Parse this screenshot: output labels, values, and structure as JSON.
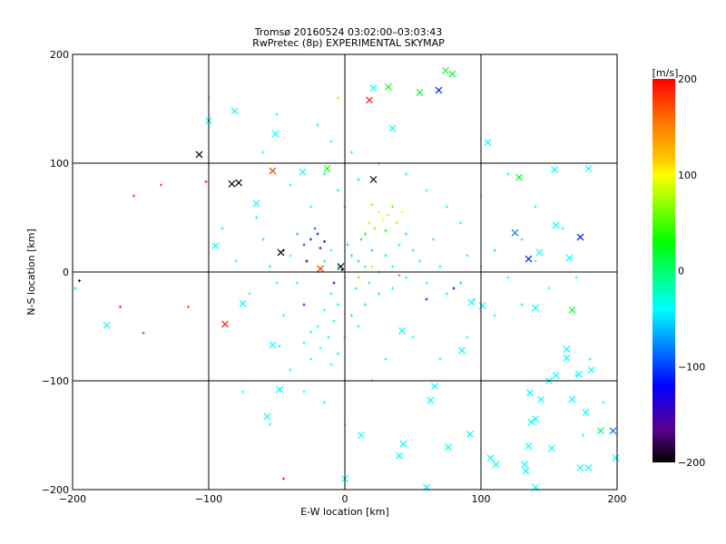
{
  "chart_data": {
    "type": "scatter",
    "title_line1": "Tromsø 20160524 03:02:00–03:03:43",
    "title_line2": "RwPretec (8p) EXPERIMENTAL SKYMAP",
    "xlabel": "E-W location [km]",
    "ylabel": "N-S location [km]",
    "xlim": [
      -200,
      200
    ],
    "ylim": [
      -200,
      200
    ],
    "xticks": [
      -200,
      -100,
      0,
      100,
      200
    ],
    "yticks": [
      -200,
      -100,
      0,
      100,
      200
    ],
    "xtick_labels": [
      "−200",
      "−100",
      "0",
      "100",
      "200"
    ],
    "ytick_labels": [
      "−200",
      "−100",
      "0",
      "100",
      "200"
    ],
    "grid": true,
    "colorbar": {
      "label": "[m/s]",
      "range": [
        -200,
        200
      ],
      "ticks": [
        200,
        100,
        0,
        -100,
        -200
      ],
      "tick_labels": [
        "200",
        "100",
        "0",
        "−100",
        "−200"
      ],
      "stops": [
        {
          "v": 200,
          "color": "#ff0000"
        },
        {
          "v": 160,
          "color": "#ff6a00"
        },
        {
          "v": 115,
          "color": "#ffcc00"
        },
        {
          "v": 100,
          "color": "#ffff00"
        },
        {
          "v": 30,
          "color": "#00ff00"
        },
        {
          "v": -40,
          "color": "#00ffff"
        },
        {
          "v": -120,
          "color": "#0000ff"
        },
        {
          "v": -165,
          "color": "#5a0090"
        },
        {
          "v": -200,
          "color": "#000000"
        }
      ]
    },
    "series": [
      {
        "name": "small-markers",
        "marker": "plus",
        "points": [
          [
            10,
            10,
            0
          ],
          [
            15,
            5,
            -20
          ],
          [
            5,
            15,
            10
          ],
          [
            20,
            20,
            20
          ],
          [
            -5,
            5,
            -10
          ],
          [
            0,
            -5,
            -20
          ],
          [
            25,
            0,
            10
          ],
          [
            30,
            15,
            0
          ],
          [
            12,
            30,
            10
          ],
          [
            -10,
            20,
            -30
          ],
          [
            -15,
            10,
            -20
          ],
          [
            8,
            -15,
            -10
          ],
          [
            18,
            -10,
            -20
          ],
          [
            35,
            5,
            -30
          ],
          [
            40,
            25,
            -10
          ],
          [
            -20,
            0,
            -30
          ],
          [
            2,
            25,
            20
          ],
          [
            22,
            40,
            60
          ],
          [
            28,
            48,
            100
          ],
          [
            32,
            52,
            110
          ],
          [
            25,
            55,
            90
          ],
          [
            18,
            45,
            80
          ],
          [
            38,
            45,
            70
          ],
          [
            35,
            60,
            50
          ],
          [
            20,
            62,
            120
          ],
          [
            42,
            55,
            90
          ],
          [
            30,
            38,
            40
          ],
          [
            15,
            35,
            30
          ],
          [
            45,
            35,
            20
          ],
          [
            50,
            20,
            -10
          ],
          [
            -25,
            30,
            -110
          ],
          [
            -20,
            35,
            -120
          ],
          [
            -15,
            28,
            -130
          ],
          [
            -30,
            25,
            -100
          ],
          [
            -18,
            22,
            -150
          ],
          [
            -22,
            40,
            -90
          ],
          [
            -35,
            35,
            -60
          ],
          [
            -40,
            15,
            -40
          ],
          [
            -28,
            10,
            -200
          ],
          [
            -45,
            20,
            -170
          ],
          [
            -10,
            -20,
            -20
          ],
          [
            -5,
            -30,
            -30
          ],
          [
            -15,
            -35,
            -40
          ],
          [
            -8,
            -45,
            -30
          ],
          [
            -20,
            -50,
            -40
          ],
          [
            -12,
            -60,
            -35
          ],
          [
            -18,
            -70,
            -40
          ],
          [
            -25,
            -55,
            -30
          ],
          [
            0,
            -60,
            -20
          ],
          [
            -5,
            -75,
            -40
          ],
          [
            -25,
            -80,
            -40
          ],
          [
            -30,
            -65,
            -35
          ],
          [
            -10,
            -85,
            -30
          ],
          [
            5,
            -40,
            -10
          ],
          [
            10,
            -50,
            -20
          ],
          [
            15,
            -30,
            0
          ],
          [
            25,
            -20,
            -10
          ],
          [
            35,
            -15,
            -30
          ],
          [
            45,
            -5,
            -40
          ],
          [
            55,
            10,
            -30
          ],
          [
            60,
            -10,
            -40
          ],
          [
            70,
            5,
            -20
          ],
          [
            65,
            30,
            -30
          ],
          [
            75,
            -20,
            -40
          ],
          [
            85,
            -10,
            -50
          ],
          [
            90,
            15,
            -30
          ],
          [
            95,
            -25,
            -40
          ],
          [
            100,
            5,
            -40
          ],
          [
            110,
            20,
            -50
          ],
          [
            120,
            -5,
            -40
          ],
          [
            130,
            30,
            -30
          ],
          [
            140,
            10,
            -40
          ],
          [
            150,
            -15,
            -40
          ],
          [
            160,
            40,
            -30
          ],
          [
            170,
            -5,
            -40
          ],
          [
            -50,
            -10,
            -30
          ],
          [
            -55,
            5,
            -20
          ],
          [
            -60,
            30,
            -10
          ],
          [
            -65,
            50,
            -30
          ],
          [
            -70,
            -20,
            -40
          ],
          [
            -80,
            10,
            -30
          ],
          [
            -90,
            40,
            -20
          ],
          [
            -45,
            -40,
            -30
          ],
          [
            -40,
            -90,
            -30
          ],
          [
            -30,
            -110,
            -40
          ],
          [
            -15,
            -120,
            -40
          ],
          [
            0,
            -140,
            -30
          ],
          [
            20,
            -100,
            -30
          ],
          [
            30,
            -80,
            -20
          ],
          [
            50,
            -60,
            -40
          ],
          [
            70,
            -80,
            -30
          ],
          [
            90,
            -60,
            -40
          ],
          [
            110,
            -40,
            -30
          ],
          [
            130,
            -30,
            -40
          ],
          [
            0,
            60,
            -10
          ],
          [
            -5,
            75,
            0
          ],
          [
            10,
            85,
            10
          ],
          [
            -15,
            90,
            -20
          ],
          [
            -25,
            60,
            -30
          ],
          [
            5,
            110,
            -30
          ],
          [
            -10,
            120,
            -40
          ],
          [
            -20,
            135,
            -30
          ],
          [
            25,
            100,
            -20
          ],
          [
            45,
            90,
            -30
          ],
          [
            60,
            75,
            -40
          ],
          [
            75,
            60,
            -30
          ],
          [
            85,
            45,
            -40
          ],
          [
            100,
            70,
            -40
          ],
          [
            120,
            90,
            -30
          ],
          [
            140,
            60,
            -40
          ],
          [
            -5,
            160,
            120
          ],
          [
            -50,
            145,
            -40
          ],
          [
            -135,
            80,
            180
          ],
          [
            -155,
            70,
            190
          ],
          [
            -102,
            83,
            200
          ],
          [
            -165,
            -32,
            190
          ],
          [
            -148,
            -56,
            180
          ],
          [
            -115,
            -32,
            170
          ],
          [
            -195,
            -8,
            -200
          ],
          [
            -198,
            -15,
            0
          ],
          [
            -48,
            -68,
            -30
          ],
          [
            10,
            -5,
            60
          ],
          [
            20,
            5,
            80
          ],
          [
            -2,
            2,
            -200
          ],
          [
            40,
            -3,
            160
          ],
          [
            -8,
            -10,
            -120
          ],
          [
            60,
            -25,
            -110
          ],
          [
            80,
            -15,
            -120
          ],
          [
            -30,
            -30,
            -110
          ],
          [
            -35,
            -10,
            -40
          ],
          [
            -40,
            80,
            -30
          ],
          [
            -60,
            110,
            -40
          ],
          [
            -100,
            160,
            -40
          ],
          [
            -75,
            -110,
            -40
          ],
          [
            -55,
            -140,
            -40
          ],
          [
            -45,
            -190,
            190
          ],
          [
            170,
            -95,
            -40
          ],
          [
            180,
            -80,
            -30
          ],
          [
            190,
            -120,
            -40
          ],
          [
            175,
            -150,
            -40
          ]
        ]
      },
      {
        "name": "cross-markers",
        "marker": "x",
        "points": [
          [
            18,
            158,
            190
          ],
          [
            32,
            170,
            30
          ],
          [
            21,
            169,
            -40
          ],
          [
            74,
            185,
            20
          ],
          [
            79,
            182,
            20
          ],
          [
            69,
            167,
            -110
          ],
          [
            55,
            165,
            20
          ],
          [
            35,
            132,
            -40
          ],
          [
            -100,
            139,
            -40
          ],
          [
            -81,
            148,
            -40
          ],
          [
            -107,
            108,
            -200
          ],
          [
            -51,
            127,
            -40
          ],
          [
            -53,
            93,
            180
          ],
          [
            -83,
            81,
            -200
          ],
          [
            -78,
            82,
            -200
          ],
          [
            21,
            85,
            -200
          ],
          [
            -31,
            92,
            -40
          ],
          [
            -13,
            95,
            30
          ],
          [
            105,
            119,
            -40
          ],
          [
            154,
            94,
            -40
          ],
          [
            179,
            95,
            -40
          ],
          [
            128,
            87,
            20
          ],
          [
            -65,
            63,
            -40
          ],
          [
            -95,
            24,
            -40
          ],
          [
            173,
            32,
            -110
          ],
          [
            155,
            43,
            -40
          ],
          [
            143,
            18,
            -40
          ],
          [
            165,
            13,
            -40
          ],
          [
            135,
            12,
            -110
          ],
          [
            -47,
            18,
            -200
          ],
          [
            -18,
            3,
            180
          ],
          [
            -88,
            -48,
            190
          ],
          [
            -75,
            -29,
            -40
          ],
          [
            -175,
            -49,
            -40
          ],
          [
            -53,
            -67,
            -40
          ],
          [
            -48,
            -108,
            -40
          ],
          [
            -57,
            -133,
            -40
          ],
          [
            140,
            -33,
            -40
          ],
          [
            167,
            -35,
            20
          ],
          [
            163,
            -71,
            -40
          ],
          [
            163,
            -79,
            -40
          ],
          [
            155,
            -95,
            -40
          ],
          [
            172,
            -94,
            -40
          ],
          [
            181,
            -90,
            -40
          ],
          [
            150,
            -100,
            -40
          ],
          [
            136,
            -111,
            -40
          ],
          [
            144,
            -117,
            -40
          ],
          [
            167,
            -117,
            -40
          ],
          [
            137,
            -138,
            -40
          ],
          [
            140,
            -135,
            -40
          ],
          [
            107,
            -171,
            -40
          ],
          [
            111,
            -177,
            -40
          ],
          [
            135,
            -160,
            -40
          ],
          [
            152,
            -162,
            -40
          ],
          [
            132,
            -177,
            -40
          ],
          [
            133,
            -183,
            -40
          ],
          [
            140,
            -198,
            -40
          ],
          [
            173,
            -180,
            -40
          ],
          [
            179,
            -180,
            -40
          ],
          [
            199,
            -171,
            -40
          ],
          [
            197,
            -146,
            -80
          ],
          [
            188,
            -146,
            0
          ],
          [
            177,
            -129,
            -40
          ],
          [
            43,
            -158,
            -40
          ],
          [
            40,
            -169,
            -40
          ],
          [
            76,
            -161,
            -40
          ],
          [
            92,
            -149,
            -40
          ],
          [
            66,
            -105,
            -40
          ],
          [
            63,
            -118,
            -40
          ],
          [
            86,
            -72,
            -40
          ],
          [
            42,
            -54,
            -40
          ],
          [
            93,
            -28,
            -40
          ],
          [
            101,
            -31,
            -40
          ],
          [
            0,
            -190,
            -40
          ],
          [
            -3,
            5,
            -200
          ],
          [
            125,
            36,
            -80
          ],
          [
            12,
            -150,
            -40
          ],
          [
            60,
            -198,
            -40
          ]
        ]
      }
    ]
  }
}
